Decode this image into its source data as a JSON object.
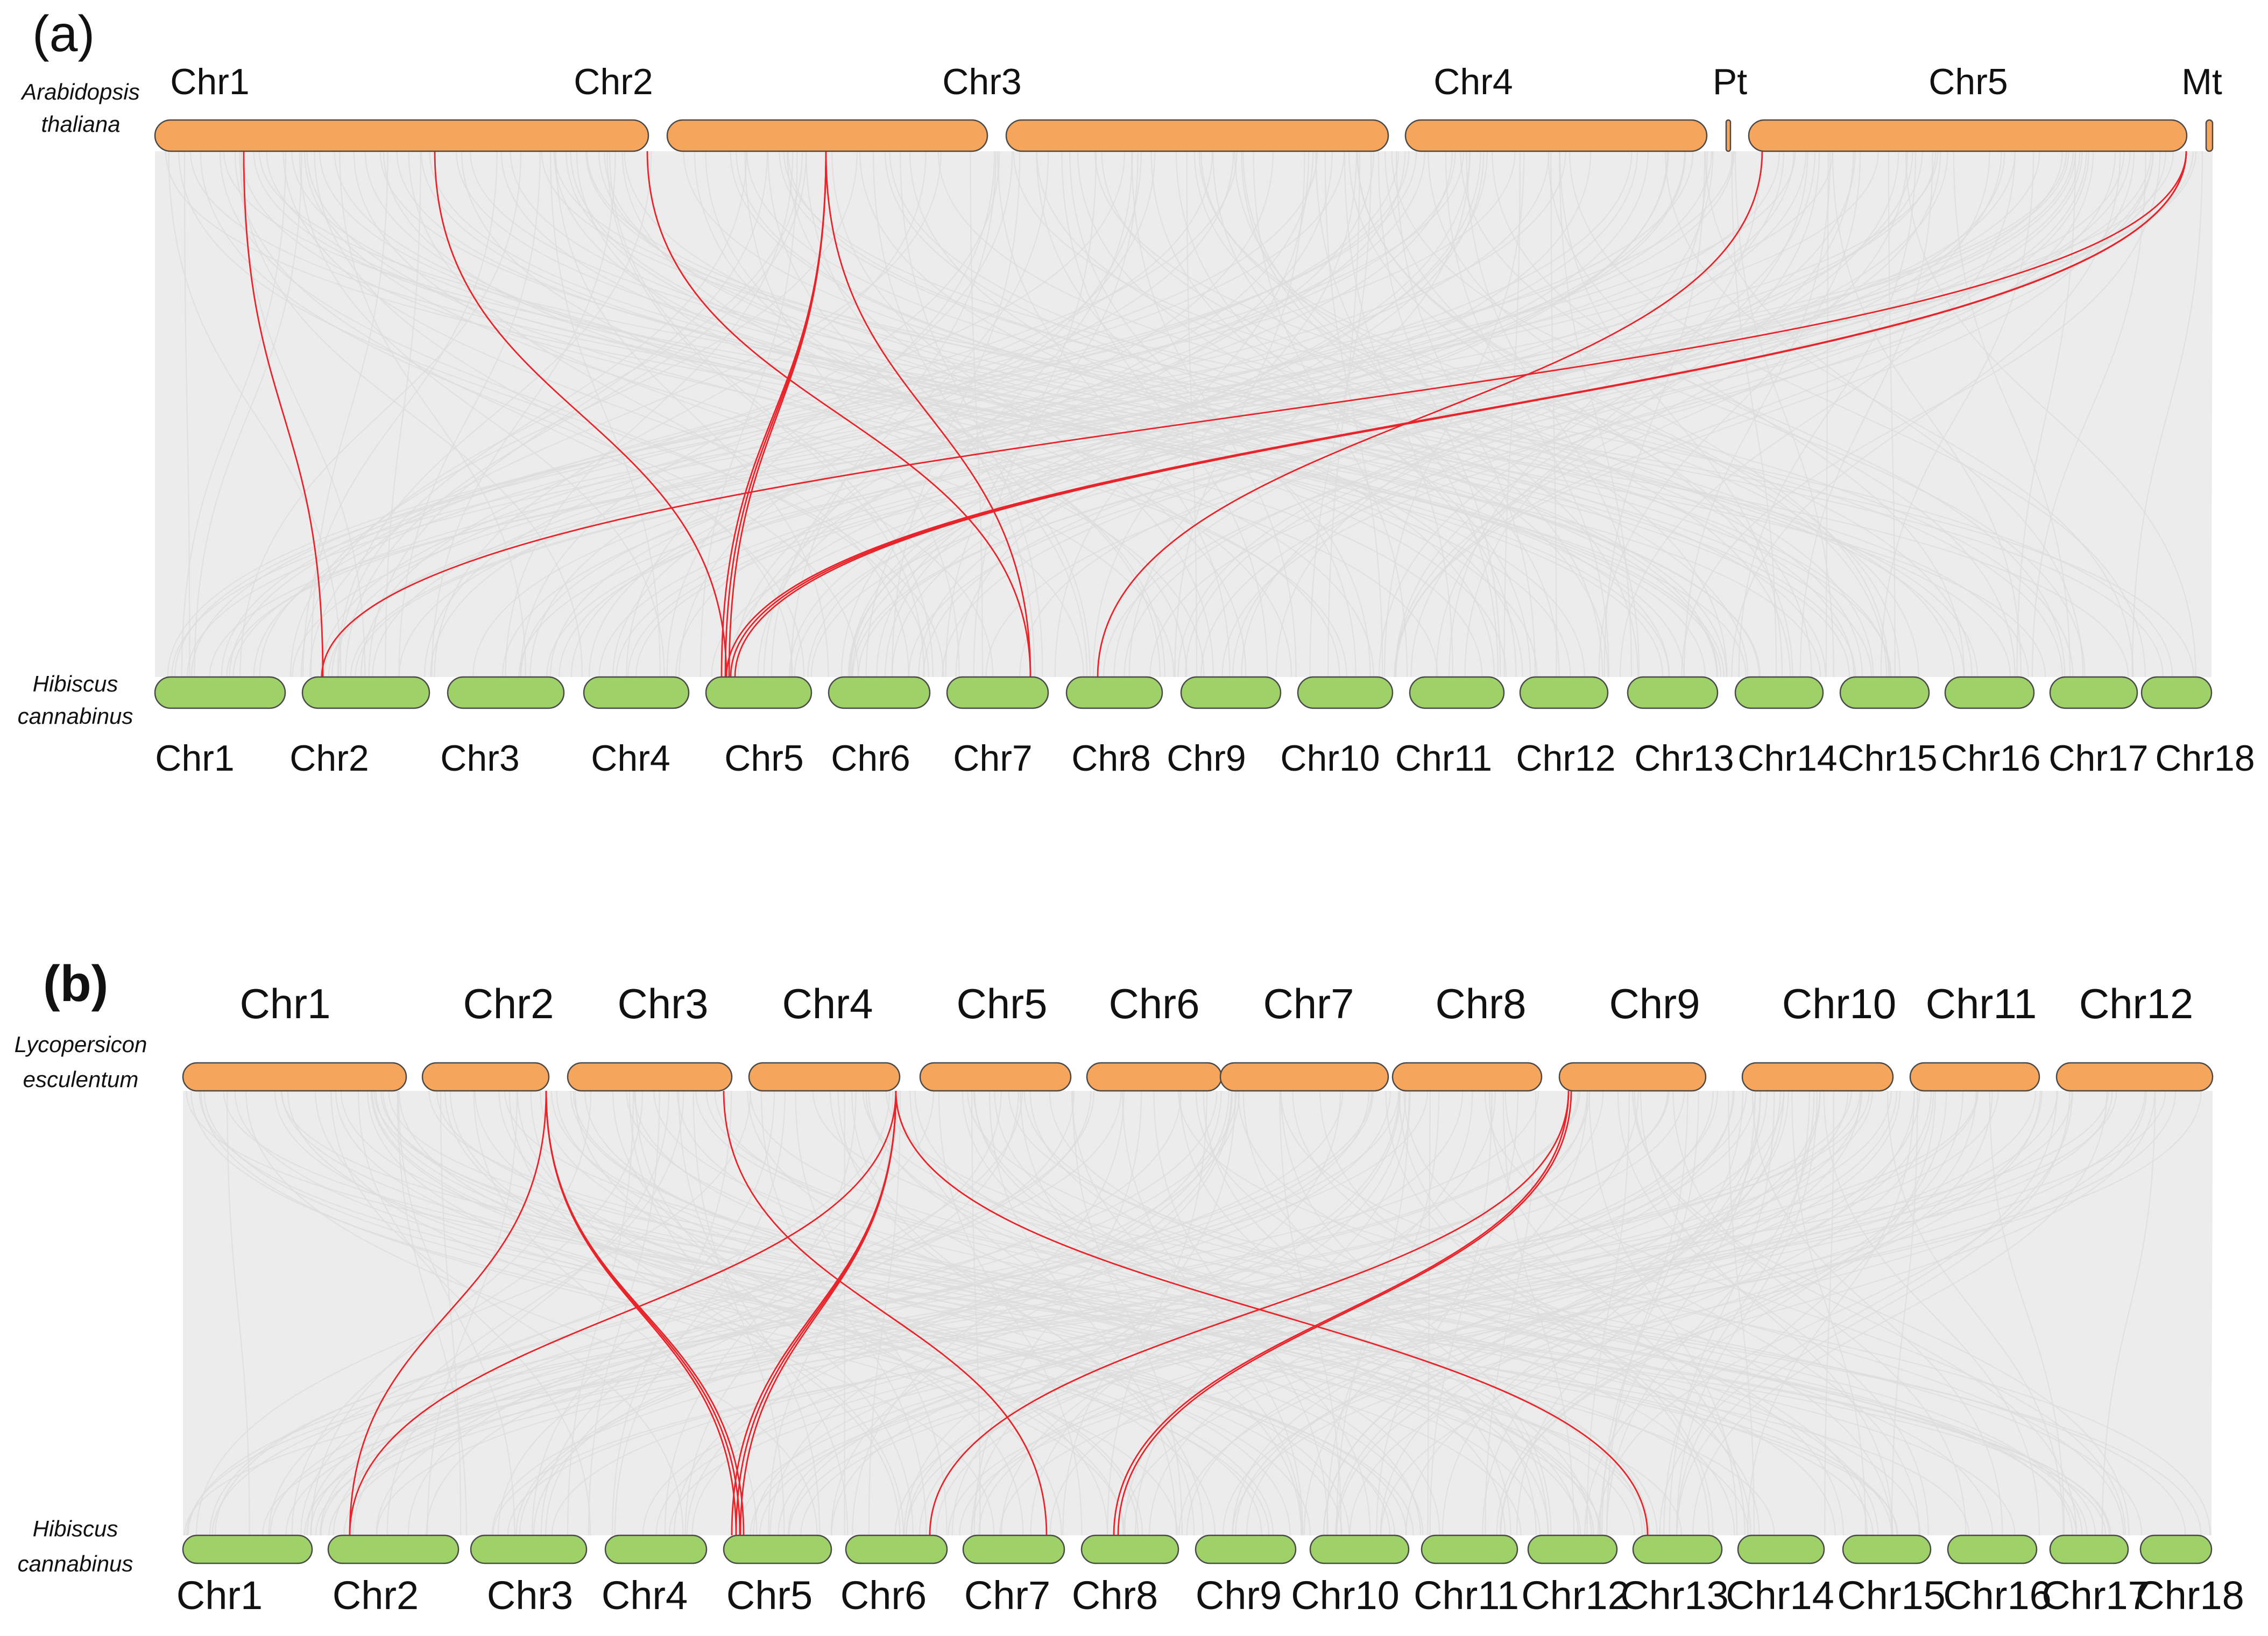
{
  "panels": [
    {
      "id": "a",
      "label": "(a)",
      "top_species": [
        "Arabidopsis",
        "thaliana"
      ],
      "bottom_species": [
        "Hibiscus",
        "cannabinus"
      ],
      "top_chromosomes": [
        "Chr1",
        "Chr2",
        "Chr3",
        "Chr4",
        "Pt",
        "Chr5",
        "Mt"
      ],
      "bottom_chromosomes": [
        "Chr1",
        "Chr2",
        "Chr3",
        "Chr4",
        "Chr5",
        "Chr6",
        "Chr7",
        "Chr8",
        "Chr9",
        "Chr10",
        "Chr11",
        "Chr12",
        "Chr13",
        "Chr14",
        "Chr15",
        "Chr16",
        "Chr17",
        "Chr18"
      ]
    },
    {
      "id": "b",
      "label": "(b)",
      "top_species": [
        "Lycopersicon",
        "esculentum"
      ],
      "bottom_species": [
        "Hibiscus",
        "cannabinus"
      ],
      "top_chromosomes": [
        "Chr1",
        "Chr2",
        "Chr3",
        "Chr4",
        "Chr5",
        "Chr6",
        "Chr7",
        "Chr8",
        "Chr9",
        "Chr10",
        "Chr11",
        "Chr12"
      ],
      "bottom_chromosomes": [
        "Chr1",
        "Chr2",
        "Chr3",
        "Chr4",
        "Chr5",
        "Chr6",
        "Chr7",
        "Chr8",
        "Chr9",
        "Chr10",
        "Chr11",
        "Chr12",
        "Chr13",
        "Chr14",
        "Chr15",
        "Chr16",
        "Chr17",
        "Chr18"
      ]
    }
  ],
  "colors": {
    "top_chromosome": "#f5a55c",
    "bottom_chromosome": "#9ed167",
    "chromosome_outline": "#4a4a4a",
    "background_links": "#dcdcdc",
    "highlighted_links": "#e8242a"
  }
}
